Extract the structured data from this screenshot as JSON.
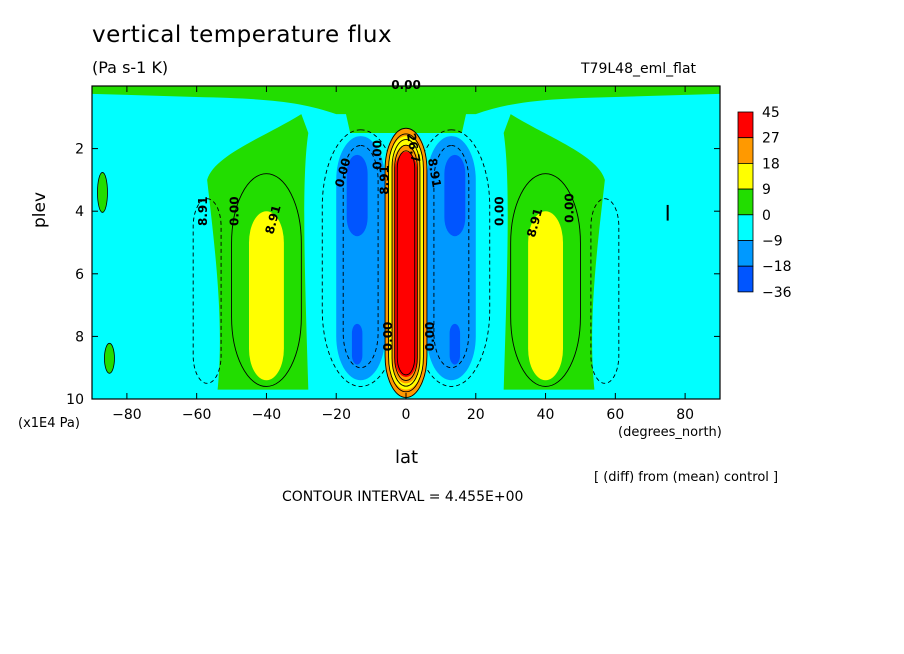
{
  "chart_data": {
    "type": "contour",
    "title": "vertical temperature flux",
    "units_label": "(Pa s-1 K)",
    "run_label": "T79L48_eml_flat",
    "xlabel": "lat",
    "x_units": "(degrees_north)",
    "ylabel": "plev",
    "y_units": "(x1E4 Pa)",
    "x_ticks": [
      -80,
      -60,
      -40,
      -20,
      0,
      20,
      40,
      60,
      80
    ],
    "y_ticks": [
      2,
      4,
      6,
      8,
      10
    ],
    "xlim": [
      -90,
      90
    ],
    "ylim": [
      10,
      0
    ],
    "comparison_note": "[ (diff) from (mean) control ]",
    "contour_interval_text": "CONTOUR INTERVAL = 4.455E+00",
    "contour_labels": [
      "0.00",
      "8.91",
      "0.00",
      "8.91",
      "0.00",
      "8.91",
      "0.00",
      "0.00",
      "0.00",
      "0.00",
      "26.7",
      "8.91",
      "8.91",
      "0.00"
    ],
    "legend": {
      "levels": [
        "45",
        "27",
        "18",
        "9",
        "0",
        "-9",
        "-18",
        "-36"
      ],
      "colors": [
        "#ff0000",
        "#ff9900",
        "#ffff00",
        "#22dd00",
        "#00ffff",
        "#0099ff",
        "#0055ff"
      ]
    },
    "features": [
      {
        "lat": 0,
        "plev_top": 1.4,
        "plev_bottom": 9.9,
        "max_value": 45,
        "sign": "positive"
      },
      {
        "lat": -14,
        "plev_top": 2.2,
        "plev_bottom": 8.8,
        "min_value": -18,
        "sign": "negative"
      },
      {
        "lat": 14,
        "plev_top": 2.2,
        "plev_bottom": 8.8,
        "min_value": -18,
        "sign": "negative"
      },
      {
        "lat": -40,
        "plev_top": 4.0,
        "plev_bottom": 9.4,
        "max_value": 18,
        "sign": "positive"
      },
      {
        "lat": 40,
        "plev_top": 4.0,
        "plev_bottom": 9.4,
        "max_value": 18,
        "sign": "positive"
      },
      {
        "lat": -57,
        "plev_top": 3.6,
        "plev_bottom": 9.5,
        "min_value": -9,
        "sign": "negative"
      },
      {
        "lat": 57,
        "plev_top": 3.6,
        "plev_bottom": 9.5,
        "min_value": -9,
        "sign": "negative"
      }
    ]
  }
}
